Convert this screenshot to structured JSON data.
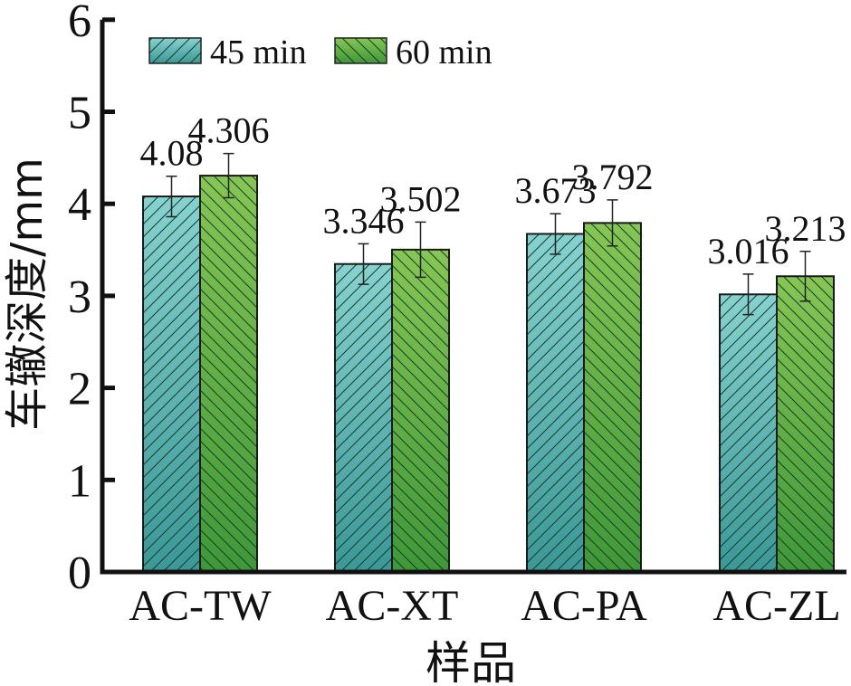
{
  "chart_data": {
    "type": "bar",
    "title": "",
    "xlabel": "样品",
    "ylabel": "车辙深度/mm",
    "ylim": [
      0,
      6
    ],
    "yticks": [
      "0",
      "1",
      "2",
      "3",
      "4",
      "5",
      "6"
    ],
    "categories": [
      "AC-TW",
      "AC-XT",
      "AC-PA",
      "AC-ZL"
    ],
    "legend_position": "top-left",
    "series": [
      {
        "name": "45 min",
        "values": [
          4.08,
          3.346,
          3.673,
          3.016
        ],
        "labels": [
          "4.08",
          "3.346",
          "3.673",
          "3.016"
        ],
        "errors": [
          0.22,
          0.22,
          0.22,
          0.22
        ],
        "color_top": "#86d2d0",
        "color_bottom": "#3a9896",
        "hatch": "forward"
      },
      {
        "name": "60 min",
        "values": [
          4.306,
          3.502,
          3.792,
          3.213
        ],
        "labels": [
          "4.306",
          "3.502",
          "3.792",
          "3.213"
        ],
        "errors": [
          0.24,
          0.3,
          0.25,
          0.27
        ],
        "color_top": "#86c654",
        "color_bottom": "#3e9838",
        "hatch": "backward"
      }
    ],
    "grid": false
  }
}
